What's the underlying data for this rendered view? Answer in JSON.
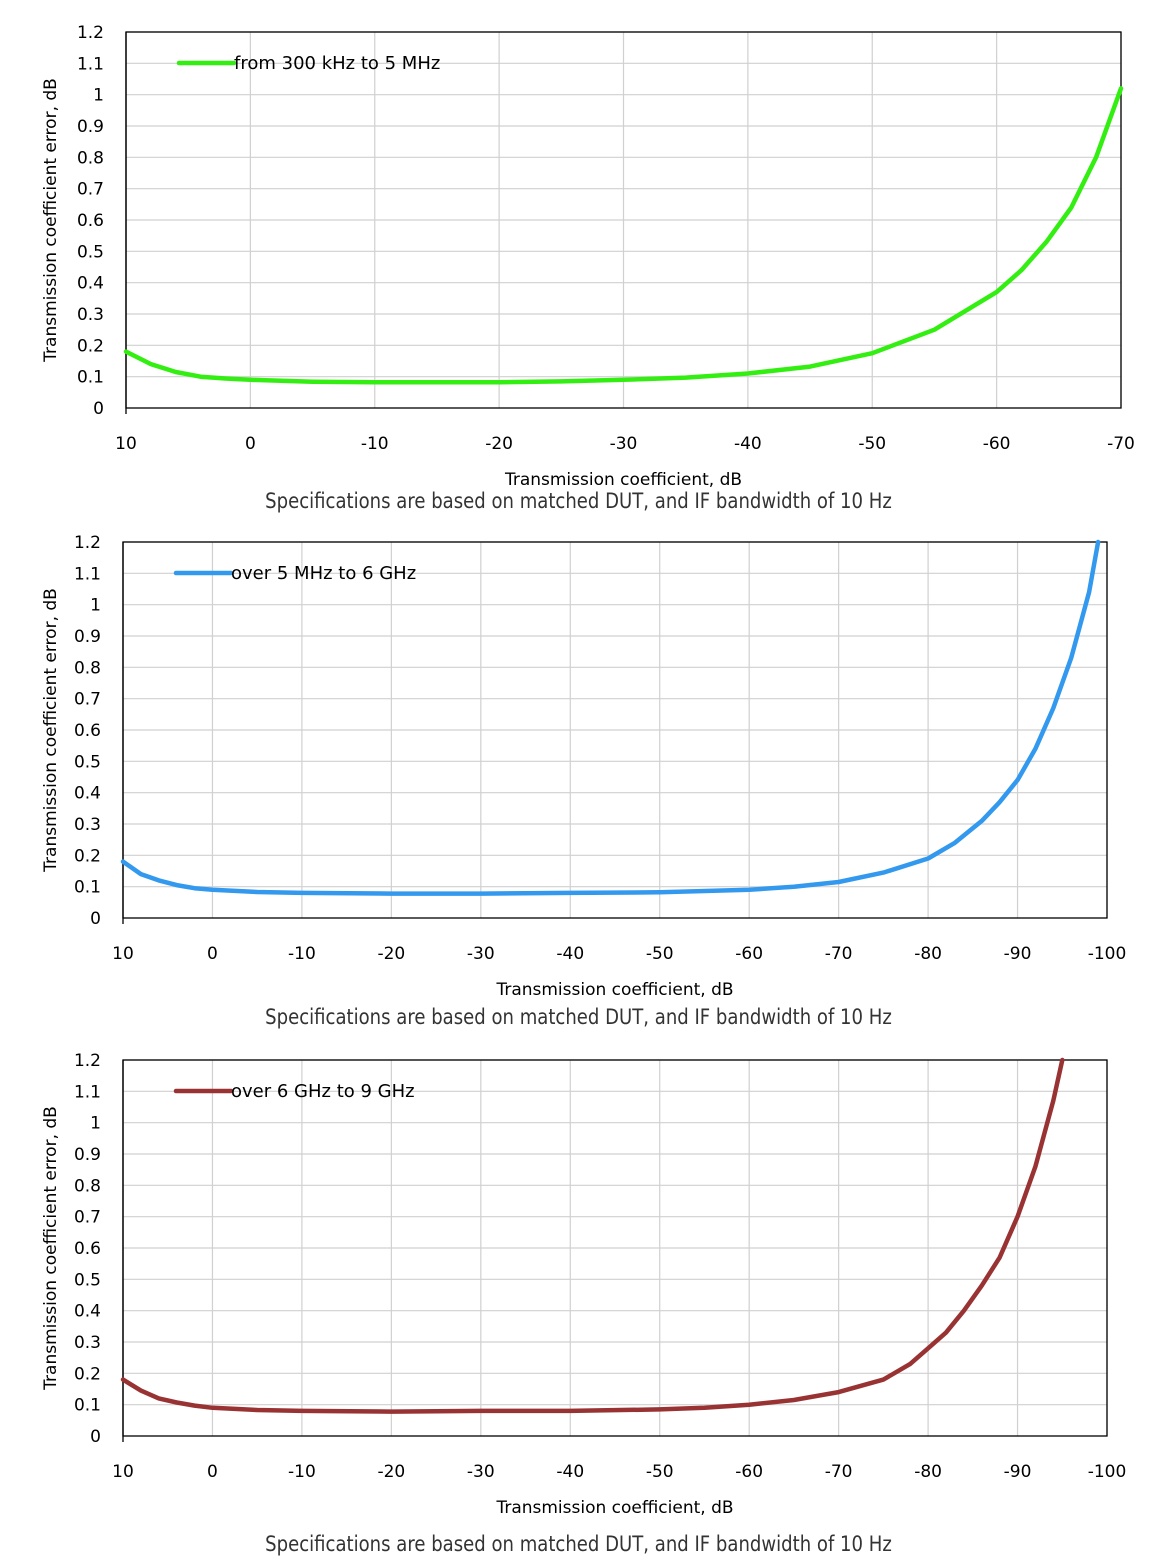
{
  "chart_data": [
    {
      "type": "line",
      "xlabel": "Transmission coefficient, dB",
      "ylabel": "Transmission coefficient error, dB",
      "xlim": [
        10,
        -70
      ],
      "ylim": [
        0,
        1.2
      ],
      "xticks": [
        10,
        0,
        -10,
        -20,
        -30,
        -40,
        -50,
        -60,
        -70
      ],
      "yticks": [
        0,
        0.1,
        0.2,
        0.3,
        0.4,
        0.5,
        0.6,
        0.7,
        0.8,
        0.9,
        1,
        1.1,
        1.2
      ],
      "grid": true,
      "legend_position": "top-left",
      "note": "Specifications are based on matched DUT, and IF bandwidth of 10 Hz",
      "series": [
        {
          "name": "from 300 kHz to 5 MHz",
          "color": "#33ee11",
          "x": [
            10,
            8,
            6,
            4,
            2,
            0,
            -5,
            -10,
            -15,
            -20,
            -25,
            -30,
            -35,
            -40,
            -45,
            -50,
            -55,
            -60,
            -62,
            -64,
            -66,
            -68,
            -70
          ],
          "y": [
            0.18,
            0.14,
            0.115,
            0.1,
            0.094,
            0.09,
            0.084,
            0.082,
            0.082,
            0.082,
            0.085,
            0.09,
            0.097,
            0.11,
            0.132,
            0.175,
            0.25,
            0.37,
            0.44,
            0.53,
            0.64,
            0.8,
            1.02
          ]
        }
      ]
    },
    {
      "type": "line",
      "xlabel": "Transmission coefficient, dB",
      "ylabel": "Transmission coefficient error, dB",
      "xlim": [
        10,
        -100
      ],
      "ylim": [
        0,
        1.2
      ],
      "xticks": [
        10,
        0,
        -10,
        -20,
        -30,
        -40,
        -50,
        -60,
        -70,
        -80,
        -90,
        -100
      ],
      "yticks": [
        0,
        0.1,
        0.2,
        0.3,
        0.4,
        0.5,
        0.6,
        0.7,
        0.8,
        0.9,
        1,
        1.1,
        1.2
      ],
      "grid": true,
      "legend_position": "top-left",
      "note": "Specifications are based on matched DUT, and IF bandwidth of 10 Hz",
      "series": [
        {
          "name": "over 5 MHz to 6 GHz",
          "color": "#3399ee",
          "x": [
            10,
            8,
            6,
            4,
            2,
            0,
            -5,
            -10,
            -20,
            -30,
            -40,
            -50,
            -60,
            -65,
            -70,
            -75,
            -80,
            -83,
            -86,
            -88,
            -90,
            -92,
            -94,
            -96,
            -98,
            -99
          ],
          "y": [
            0.18,
            0.14,
            0.12,
            0.105,
            0.095,
            0.09,
            0.083,
            0.08,
            0.078,
            0.078,
            0.08,
            0.082,
            0.09,
            0.1,
            0.115,
            0.145,
            0.19,
            0.24,
            0.31,
            0.37,
            0.44,
            0.54,
            0.67,
            0.83,
            1.04,
            1.2
          ]
        }
      ]
    },
    {
      "type": "line",
      "xlabel": "Transmission coefficient, dB",
      "ylabel": "Transmission coefficient error, dB",
      "xlim": [
        10,
        -100
      ],
      "ylim": [
        0,
        1.2
      ],
      "xticks": [
        10,
        0,
        -10,
        -20,
        -30,
        -40,
        -50,
        -60,
        -70,
        -80,
        -90,
        -100
      ],
      "yticks": [
        0,
        0.1,
        0.2,
        0.3,
        0.4,
        0.5,
        0.6,
        0.7,
        0.8,
        0.9,
        1,
        1.1,
        1.2
      ],
      "grid": true,
      "legend_position": "top-left",
      "note": "Specifications are based on matched DUT, and IF bandwidth of 10 Hz",
      "series": [
        {
          "name": "over 6 GHz to 9 GHz",
          "color": "#993333",
          "x": [
            10,
            8,
            6,
            4,
            2,
            0,
            -5,
            -10,
            -20,
            -30,
            -40,
            -50,
            -55,
            -60,
            -65,
            -70,
            -75,
            -78,
            -80,
            -82,
            -84,
            -86,
            -88,
            -90,
            -92,
            -94,
            -95
          ],
          "y": [
            0.18,
            0.145,
            0.12,
            0.107,
            0.097,
            0.09,
            0.083,
            0.08,
            0.078,
            0.08,
            0.08,
            0.085,
            0.09,
            0.1,
            0.115,
            0.14,
            0.18,
            0.23,
            0.28,
            0.33,
            0.4,
            0.48,
            0.57,
            0.7,
            0.86,
            1.07,
            1.2
          ]
        }
      ]
    }
  ]
}
